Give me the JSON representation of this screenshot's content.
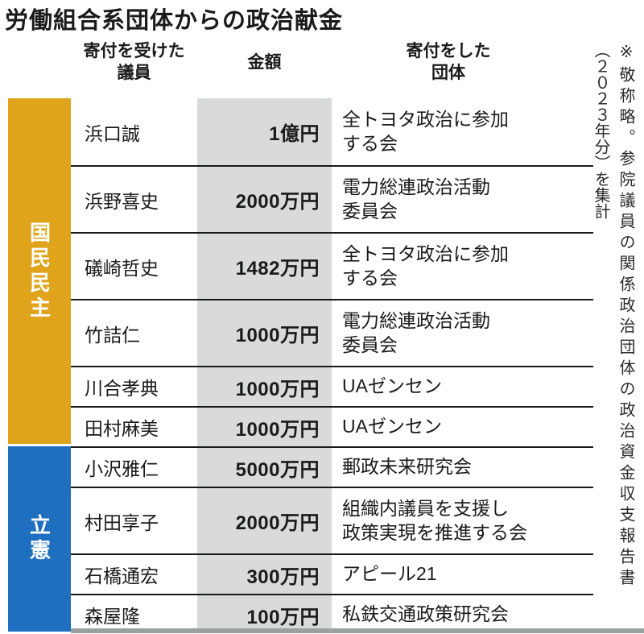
{
  "title": "労働組合系団体からの政治献金",
  "headers": {
    "recipient": "寄付を受けた\n議員",
    "amount": "金額",
    "donor": "寄付をした\n団体"
  },
  "note": {
    "line1": "※敬称略。参院議員の関係政治団体の政治資金収支報告書",
    "line2": "（２０２３年分）を集計"
  },
  "colors": {
    "kokumin_band": "#dfa41c",
    "rikken_band": "#1e6fc0",
    "amount_column_bg": "#d9dada",
    "divider": "#1a1a1a",
    "label_text": "#ffffff"
  },
  "parties": [
    {
      "id": "kokumin",
      "label": "国民民主",
      "color": "#dfa41c",
      "row_count": 6
    },
    {
      "id": "rikken",
      "label": "立憲",
      "color": "#1e6fc0",
      "row_count": 4
    }
  ],
  "rows": [
    {
      "member": "浜口誠",
      "amount": "1億円",
      "donor": "全トヨタ政治に参加\nする会",
      "party": "国民民主"
    },
    {
      "member": "浜野喜史",
      "amount": "2000万円",
      "donor": "電力総連政治活動\n委員会",
      "party": "国民民主"
    },
    {
      "member": "礒崎哲史",
      "amount": "1482万円",
      "donor": "全トヨタ政治に参加\nする会",
      "party": "国民民主"
    },
    {
      "member": "竹詰仁",
      "amount": "1000万円",
      "donor": "電力総連政治活動\n委員会",
      "party": "国民民主"
    },
    {
      "member": "川合孝典",
      "amount": "1000万円",
      "donor": "UAゼンセン",
      "party": "国民民主"
    },
    {
      "member": "田村麻美",
      "amount": "1000万円",
      "donor": "UAゼンセン",
      "party": "国民民主"
    },
    {
      "member": "小沢雅仁",
      "amount": "5000万円",
      "donor": "郵政未来研究会",
      "party": "立憲"
    },
    {
      "member": "村田享子",
      "amount": "2000万円",
      "donor": "組織内議員を支援し\n政策実現を推進する会",
      "party": "立憲"
    },
    {
      "member": "石橋通宏",
      "amount": "300万円",
      "donor": "アピール21",
      "party": "立憲"
    },
    {
      "member": "森屋隆",
      "amount": "100万円",
      "donor": "私鉄交通政策研究会",
      "party": "立憲"
    }
  ],
  "chart_data": {
    "type": "table",
    "title": "労働組合系団体からの政治献金",
    "columns": [
      "寄付を受けた議員",
      "金額",
      "寄付をした団体"
    ],
    "rows": [
      [
        "浜口誠",
        "1億円",
        "全トヨタ政治に参加する会"
      ],
      [
        "浜野喜史",
        "2000万円",
        "電力総連政治活動委員会"
      ],
      [
        "礒崎哲史",
        "1482万円",
        "全トヨタ政治に参加する会"
      ],
      [
        "竹詰仁",
        "1000万円",
        "電力総連政治活動委員会"
      ],
      [
        "川合孝典",
        "1000万円",
        "UAゼンセン"
      ],
      [
        "田村麻美",
        "1000万円",
        "UAゼンセン"
      ],
      [
        "小沢雅仁",
        "5000万円",
        "郵政未来研究会"
      ],
      [
        "村田享子",
        "2000万円",
        "組織内議員を支援し政策実現を推進する会"
      ],
      [
        "石橋通宏",
        "300万円",
        "アピール21"
      ],
      [
        "森屋隆",
        "100万円",
        "私鉄交通政策研究会"
      ]
    ],
    "row_groups": [
      {
        "label": "国民民主",
        "rows": [
          0,
          5
        ]
      },
      {
        "label": "立憲",
        "rows": [
          6,
          9
        ]
      }
    ],
    "note": "※敬称略。参院議員の関係政治団体の政治資金収支報告書（2023年分）を集計"
  }
}
